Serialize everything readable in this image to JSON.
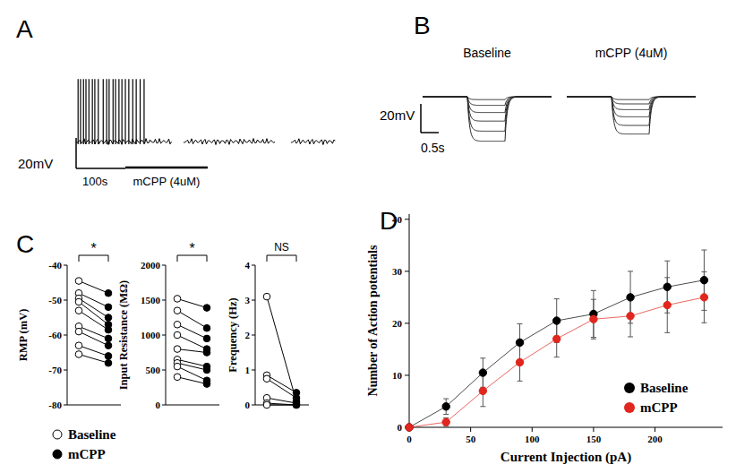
{
  "chart_data": [
    {
      "panel": "A",
      "type": "trace",
      "xlim": [
        0,
        527
      ],
      "ylim": [
        -80,
        0
      ],
      "segments": [
        [
          0,
          196
        ],
        [
          218,
          405
        ],
        [
          436,
          527
        ]
      ],
      "resting_mV": -50,
      "spike_peak_mV": -9,
      "spike_times": [
        4,
        9,
        15,
        20,
        26,
        33,
        38,
        45,
        55,
        62,
        67,
        75,
        80,
        87,
        93,
        100,
        107,
        115,
        122,
        130,
        138
      ],
      "drug": {
        "label": "mCPP (4uM)",
        "start": 100,
        "end": 267
      },
      "scale_bar": {
        "x": 100,
        "x_label": "100s",
        "y": 20,
        "y_label": "20mV"
      }
    },
    {
      "panel": "B",
      "type": "trace",
      "xlim": [
        0,
        3.6
      ],
      "ylim": [
        -100,
        -40
      ],
      "resting_mV": -50,
      "step": [
        1.25,
        2.3
      ],
      "traces": [
        {
          "name": "Baseline",
          "values": [
            -52,
            -56,
            -61,
            -67,
            -74,
            -81
          ]
        },
        {
          "name": "mCPP (4uM)",
          "values": [
            -52,
            -55,
            -59,
            -64,
            -70,
            -76
          ]
        }
      ],
      "scale_bar": {
        "x": 0.5,
        "x_label": "0.5s",
        "y": 20,
        "y_label": "20mV"
      }
    },
    {
      "panel": "C",
      "type": "paired_dot",
      "series": [
        {
          "name": "Baseline",
          "marker": "open"
        },
        {
          "name": "mCPP",
          "marker": "filled"
        }
      ],
      "subplots": [
        {
          "ylabel": "RMP (mV)",
          "ylim": [
            -80,
            -40
          ],
          "yticks": [
            -80,
            -70,
            -60,
            -50,
            -40
          ],
          "annotation": "*",
          "series": [
            {
              "values": [
                -44.5,
                -48,
                -49.5,
                -50.5,
                -53,
                -57.5,
                -59,
                -63,
                -65.5
              ]
            },
            {
              "values": [
                -48,
                -52,
                -55,
                -57,
                -58.5,
                -61,
                -63,
                -66,
                -68
              ]
            }
          ]
        },
        {
          "ylabel": "Input Resistance (MΩ)",
          "ylim": [
            0,
            2000
          ],
          "yticks": [
            0,
            500,
            1000,
            1500,
            2000
          ],
          "annotation": "*",
          "series": [
            {
              "values": [
                1520,
                1350,
                1150,
                1000,
                800,
                650,
                600,
                550,
                400
              ]
            },
            {
              "values": [
                1390,
                1100,
                950,
                800,
                750,
                550,
                500,
                350,
                300
              ]
            }
          ]
        },
        {
          "ylabel": "Frequency (Hz)",
          "ylim": [
            0,
            4
          ],
          "yticks": [
            0,
            1,
            2,
            3,
            4
          ],
          "annotation": "NS",
          "series": [
            {
              "values": [
                3.1,
                0.85,
                0.75,
                0.2,
                0.05,
                0
              ]
            },
            {
              "values": [
                0.1,
                0.35,
                0.2,
                0.05,
                0,
                0
              ]
            }
          ]
        }
      ]
    },
    {
      "panel": "D",
      "type": "line",
      "xlabel": "Current Injection (pA)",
      "ylabel": "Number of Action potentials",
      "x": [
        0,
        30,
        60,
        90,
        120,
        150,
        180,
        210,
        240
      ],
      "xlim": [
        0,
        255
      ],
      "xticks": [
        0,
        50,
        100,
        150,
        200
      ],
      "ylim": [
        0,
        41
      ],
      "yticks": [
        0,
        10,
        20,
        30,
        40
      ],
      "legend": "lower right",
      "marker": "circle",
      "series": [
        {
          "name": "Baseline",
          "color": "#000000",
          "values": [
            0,
            4,
            10.5,
            16.3,
            20.5,
            21.8,
            25,
            27,
            28.3
          ],
          "errors": [
            0,
            1.5,
            2.8,
            3.6,
            4.2,
            4.5,
            5,
            5,
            5.8
          ]
        },
        {
          "name": "mCPP",
          "color": "#e0261e",
          "values": [
            0,
            1,
            7,
            12.5,
            17,
            20.8,
            21.4,
            23.5,
            25
          ],
          "errors": [
            0,
            0.8,
            3,
            3.6,
            3.5,
            3.8,
            4,
            5.3,
            4.9
          ]
        }
      ]
    }
  ]
}
